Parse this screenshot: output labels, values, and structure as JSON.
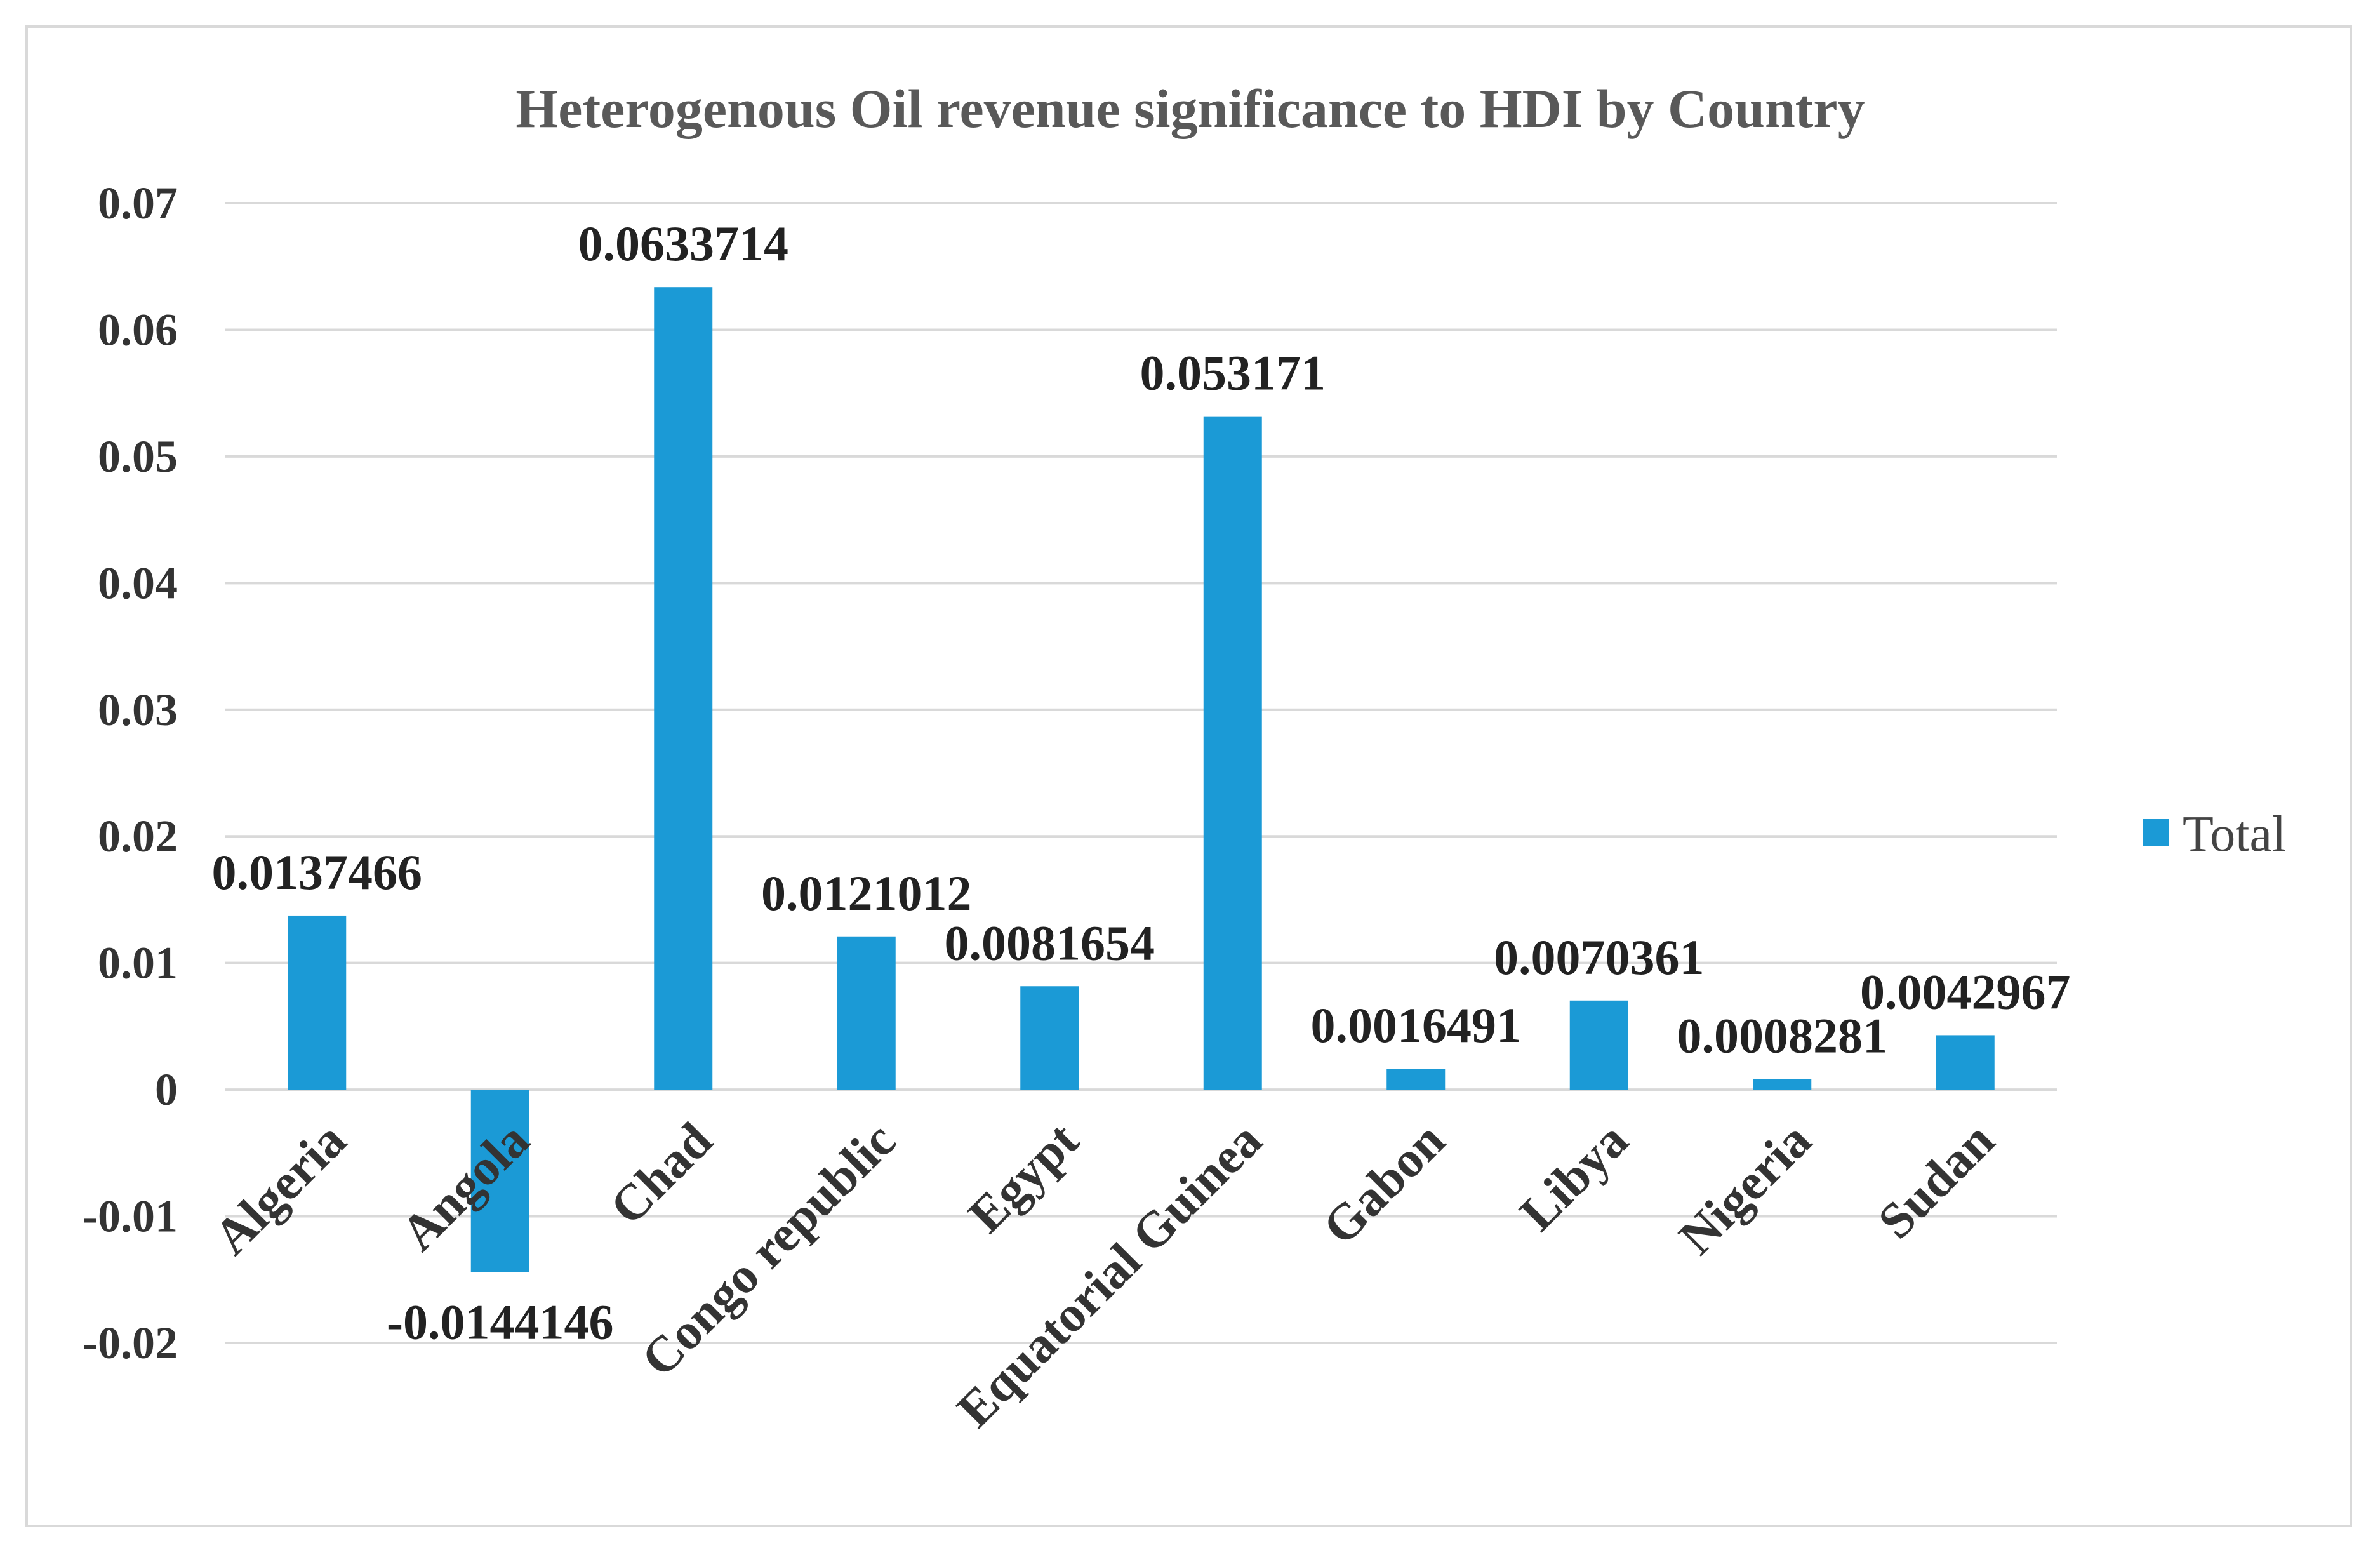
{
  "chart_data": {
    "type": "bar",
    "title": "Heterogenous Oil revenue significance to HDI by Country",
    "categories": [
      "Algeria",
      "Angola",
      "Chad",
      "Congo republic",
      "Egypt",
      "Equatorial Guinea",
      "Gabon",
      "Libya",
      "Nigeria",
      "Sudan"
    ],
    "series": [
      {
        "name": "Total",
        "color": "#1b9ad6",
        "values": [
          0.0137466,
          -0.0144146,
          0.0633714,
          0.0121012,
          0.0081654,
          0.053171,
          0.0016491,
          0.0070361,
          0.0008281,
          0.0042967
        ],
        "value_labels": [
          "0.0137466",
          "-0.0144146",
          "0.0633714",
          "0.0121012",
          "0.0081654",
          "0.053171",
          "0.0016491",
          "0.0070361",
          "0.0008281",
          "0.0042967"
        ]
      }
    ],
    "y_ticks": [
      "0.07",
      "0.06",
      "0.05",
      "0.04",
      "0.03",
      "0.02",
      "0.01",
      "0",
      "-0.01",
      "-0.02"
    ],
    "ylim": [
      -0.02,
      0.07
    ],
    "grid": true,
    "legend_position": "right",
    "xlabel": "",
    "ylabel": ""
  }
}
